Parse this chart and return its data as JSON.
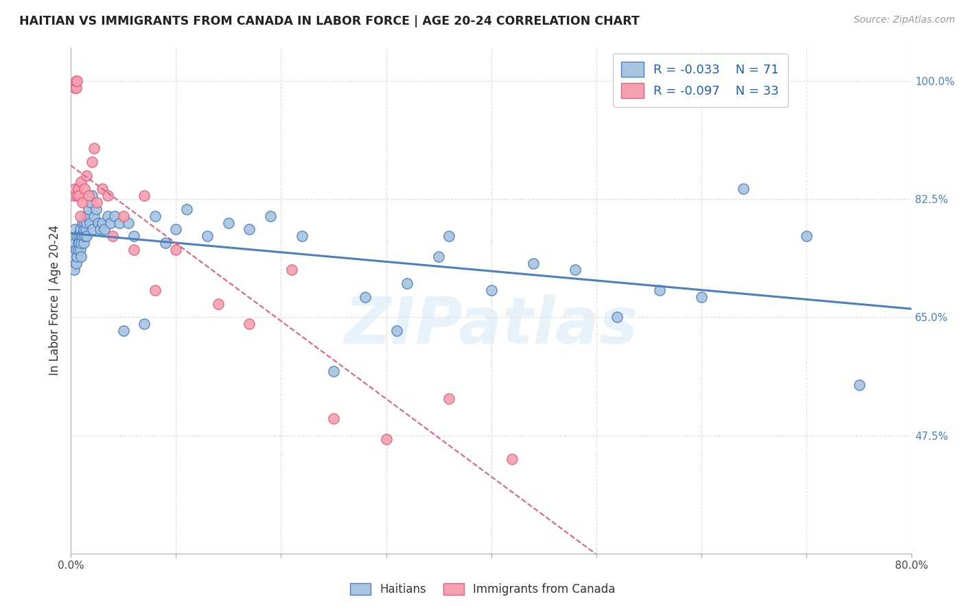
{
  "title": "HAITIAN VS IMMIGRANTS FROM CANADA IN LABOR FORCE | AGE 20-24 CORRELATION CHART",
  "source": "Source: ZipAtlas.com",
  "ylabel": "In Labor Force | Age 20-24",
  "xlim": [
    0.0,
    0.8
  ],
  "ylim": [
    0.3,
    1.05
  ],
  "xticks": [
    0.0,
    0.1,
    0.2,
    0.3,
    0.4,
    0.5,
    0.6,
    0.7,
    0.8
  ],
  "xticklabels": [
    "0.0%",
    "",
    "",
    "",
    "",
    "",
    "",
    "",
    "80.0%"
  ],
  "ytick_positions": [
    0.475,
    0.65,
    0.825,
    1.0
  ],
  "ytick_labels": [
    "47.5%",
    "65.0%",
    "82.5%",
    "100.0%"
  ],
  "blue_R": -0.033,
  "blue_N": 71,
  "pink_R": -0.097,
  "pink_N": 33,
  "blue_color": "#a8c4e0",
  "pink_color": "#f4a0b0",
  "blue_line_color": "#4a7fc1",
  "pink_line_color": "#e06080",
  "background_color": "#ffffff",
  "grid_color": "#dddddd",
  "watermark": "ZIPatlas",
  "blue_x": [
    0.002,
    0.003,
    0.004,
    0.004,
    0.005,
    0.005,
    0.006,
    0.006,
    0.007,
    0.007,
    0.008,
    0.008,
    0.009,
    0.009,
    0.01,
    0.01,
    0.01,
    0.011,
    0.011,
    0.012,
    0.012,
    0.013,
    0.013,
    0.014,
    0.014,
    0.015,
    0.015,
    0.016,
    0.017,
    0.018,
    0.019,
    0.02,
    0.021,
    0.022,
    0.024,
    0.026,
    0.028,
    0.03,
    0.032,
    0.035,
    0.038,
    0.042,
    0.046,
    0.05,
    0.055,
    0.06,
    0.07,
    0.08,
    0.09,
    0.1,
    0.11,
    0.13,
    0.15,
    0.17,
    0.19,
    0.22,
    0.25,
    0.28,
    0.32,
    0.36,
    0.4,
    0.44,
    0.48,
    0.52,
    0.56,
    0.6,
    0.64,
    0.7,
    0.75,
    0.31,
    0.35
  ],
  "blue_y": [
    0.74,
    0.72,
    0.76,
    0.78,
    0.75,
    0.73,
    0.77,
    0.74,
    0.76,
    0.75,
    0.77,
    0.76,
    0.75,
    0.78,
    0.77,
    0.76,
    0.74,
    0.79,
    0.77,
    0.78,
    0.76,
    0.79,
    0.77,
    0.8,
    0.78,
    0.79,
    0.77,
    0.8,
    0.81,
    0.79,
    0.82,
    0.83,
    0.78,
    0.8,
    0.81,
    0.79,
    0.78,
    0.79,
    0.78,
    0.8,
    0.79,
    0.8,
    0.79,
    0.63,
    0.79,
    0.77,
    0.64,
    0.8,
    0.76,
    0.78,
    0.81,
    0.77,
    0.79,
    0.78,
    0.8,
    0.77,
    0.57,
    0.68,
    0.7,
    0.77,
    0.69,
    0.73,
    0.72,
    0.65,
    0.69,
    0.68,
    0.84,
    0.77,
    0.55,
    0.63,
    0.74
  ],
  "pink_x": [
    0.003,
    0.004,
    0.004,
    0.005,
    0.005,
    0.006,
    0.006,
    0.007,
    0.008,
    0.009,
    0.01,
    0.011,
    0.013,
    0.015,
    0.017,
    0.02,
    0.022,
    0.025,
    0.03,
    0.035,
    0.04,
    0.05,
    0.06,
    0.07,
    0.08,
    0.1,
    0.14,
    0.17,
    0.21,
    0.25,
    0.3,
    0.36,
    0.42
  ],
  "pink_y": [
    0.83,
    0.84,
    0.99,
    0.99,
    1.0,
    1.0,
    0.83,
    0.84,
    0.83,
    0.8,
    0.85,
    0.82,
    0.84,
    0.86,
    0.83,
    0.88,
    0.9,
    0.82,
    0.84,
    0.83,
    0.77,
    0.8,
    0.75,
    0.83,
    0.69,
    0.75,
    0.67,
    0.64,
    0.72,
    0.5,
    0.47,
    0.53,
    0.44
  ]
}
